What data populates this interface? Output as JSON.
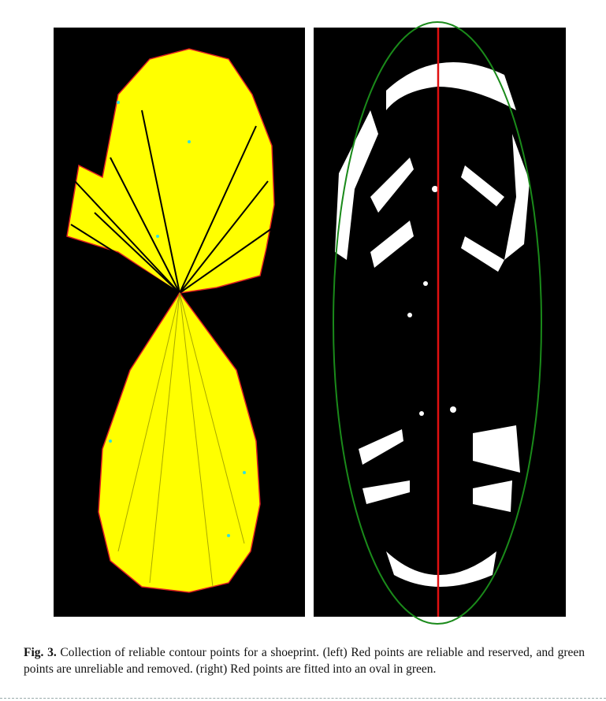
{
  "figure": {
    "label": "Fig. 3.",
    "caption": "Collection of reliable contour points for a shoeprint. (left) Red points are reliable and reserved, and green points are unreliable and removed. (right) Red points are fitted into an oval in green."
  }
}
